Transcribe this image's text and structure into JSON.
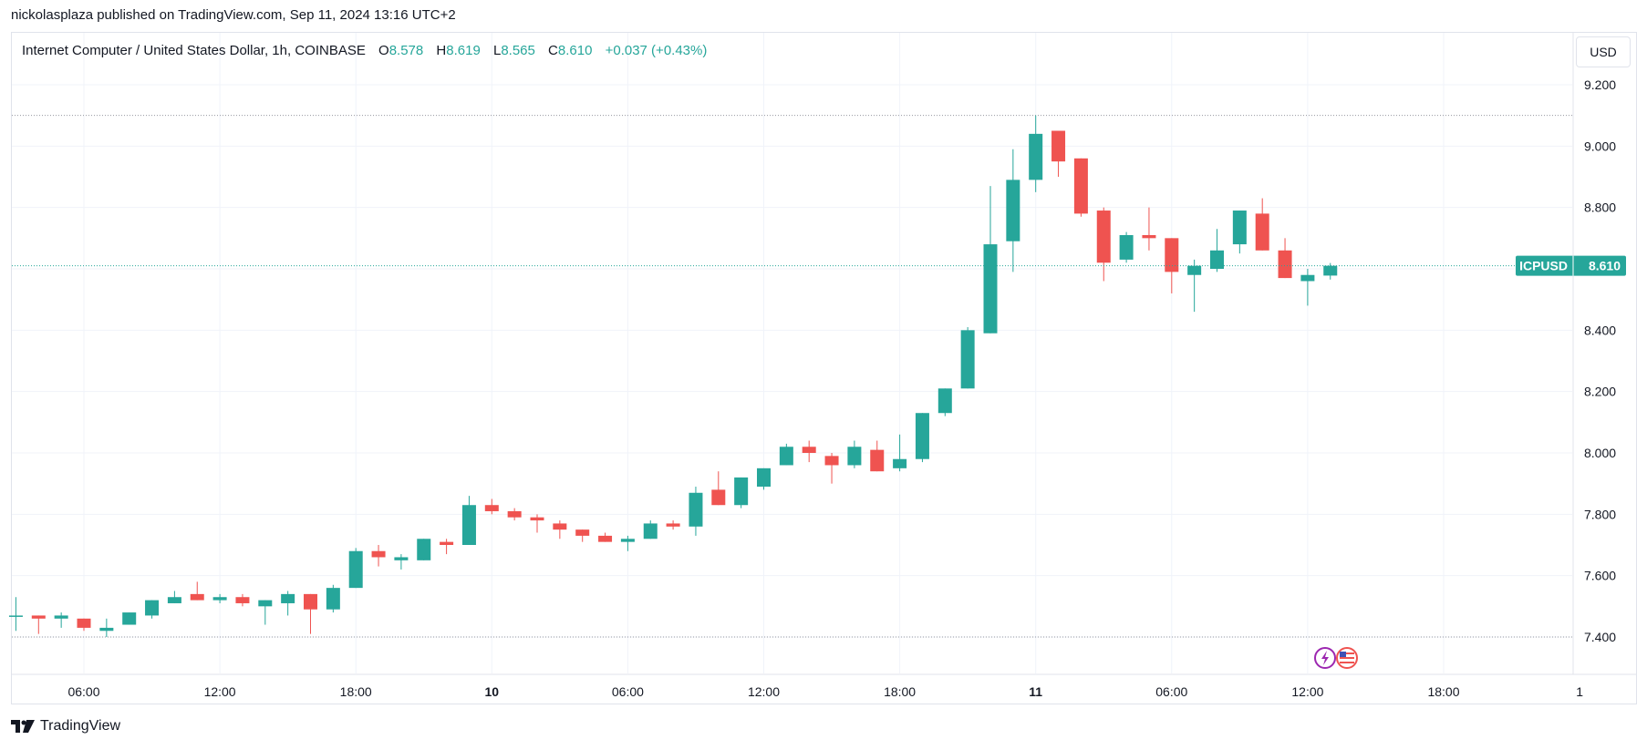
{
  "header": {
    "published": "nickolasplaza published on TradingView.com, Sep 11, 2024 13:16 UTC+2"
  },
  "legend": {
    "symbol": "Internet Computer / United States Dollar, 1h, COINBASE",
    "open_label": "O",
    "open": "8.578",
    "high_label": "H",
    "high": "8.619",
    "low_label": "L",
    "low": "8.565",
    "close_label": "C",
    "close": "8.610",
    "change": "+0.037 (+0.43%)"
  },
  "currency_button": "USD",
  "price_tag": {
    "symbol": "ICPUSD",
    "price": "8.610"
  },
  "footer": {
    "brand": "TradingView"
  },
  "colors": {
    "up": "#26a69a",
    "down": "#ef5350",
    "grid": "#f0f3fa",
    "dotted": "#9598a1"
  },
  "chart_data": {
    "type": "candlestick",
    "timeframe": "1h",
    "x_start": "Sep 9, 03:00",
    "x_end": "Sep 12, 00:00",
    "y_ticks": [
      "9.200",
      "9.000",
      "8.800",
      "8.600",
      "8.400",
      "8.200",
      "8.000",
      "7.800",
      "7.600",
      "7.400"
    ],
    "ylim": [
      7.32,
      9.3
    ],
    "x_ticks": [
      {
        "label": "06:00",
        "time": "Sep 9, 06:00",
        "bold": false
      },
      {
        "label": "12:00",
        "time": "Sep 9, 12:00",
        "bold": false
      },
      {
        "label": "18:00",
        "time": "Sep 9, 18:00",
        "bold": false
      },
      {
        "label": "10",
        "time": "Sep 10, 00:00",
        "bold": true
      },
      {
        "label": "06:00",
        "time": "Sep 10, 06:00",
        "bold": false
      },
      {
        "label": "12:00",
        "time": "Sep 10, 12:00",
        "bold": false
      },
      {
        "label": "18:00",
        "time": "Sep 10, 18:00",
        "bold": false
      },
      {
        "label": "11",
        "time": "Sep 11, 00:00",
        "bold": true
      },
      {
        "label": "06:00",
        "time": "Sep 11, 06:00",
        "bold": false
      },
      {
        "label": "12:00",
        "time": "Sep 11, 12:00",
        "bold": false
      },
      {
        "label": "18:00",
        "time": "Sep 11, 18:00",
        "bold": false
      },
      {
        "label": "1",
        "time": "Sep 12, 00:00",
        "bold": false
      }
    ],
    "horizontal_lines": [
      9.1,
      7.4
    ],
    "candles": [
      {
        "t": "Sep 9, 03:00",
        "o": 7.47,
        "h": 7.53,
        "l": 7.42,
        "c": 7.47
      },
      {
        "t": "Sep 9, 04:00",
        "o": 7.47,
        "h": 7.47,
        "l": 7.41,
        "c": 7.46
      },
      {
        "t": "Sep 9, 05:00",
        "o": 7.46,
        "h": 7.48,
        "l": 7.43,
        "c": 7.47
      },
      {
        "t": "Sep 9, 06:00",
        "o": 7.46,
        "h": 7.46,
        "l": 7.42,
        "c": 7.43
      },
      {
        "t": "Sep 9, 07:00",
        "o": 7.42,
        "h": 7.46,
        "l": 7.4,
        "c": 7.43
      },
      {
        "t": "Sep 9, 08:00",
        "o": 7.44,
        "h": 7.48,
        "l": 7.44,
        "c": 7.48
      },
      {
        "t": "Sep 9, 09:00",
        "o": 7.47,
        "h": 7.52,
        "l": 7.46,
        "c": 7.52
      },
      {
        "t": "Sep 9, 10:00",
        "o": 7.51,
        "h": 7.55,
        "l": 7.51,
        "c": 7.53
      },
      {
        "t": "Sep 9, 11:00",
        "o": 7.54,
        "h": 7.58,
        "l": 7.52,
        "c": 7.52
      },
      {
        "t": "Sep 9, 12:00",
        "o": 7.52,
        "h": 7.54,
        "l": 7.51,
        "c": 7.53
      },
      {
        "t": "Sep 9, 13:00",
        "o": 7.53,
        "h": 7.54,
        "l": 7.5,
        "c": 7.51
      },
      {
        "t": "Sep 9, 14:00",
        "o": 7.5,
        "h": 7.52,
        "l": 7.44,
        "c": 7.52
      },
      {
        "t": "Sep 9, 15:00",
        "o": 7.51,
        "h": 7.55,
        "l": 7.47,
        "c": 7.54
      },
      {
        "t": "Sep 9, 16:00",
        "o": 7.54,
        "h": 7.54,
        "l": 7.41,
        "c": 7.49
      },
      {
        "t": "Sep 9, 17:00",
        "o": 7.49,
        "h": 7.57,
        "l": 7.48,
        "c": 7.56
      },
      {
        "t": "Sep 9, 18:00",
        "o": 7.56,
        "h": 7.69,
        "l": 7.56,
        "c": 7.68
      },
      {
        "t": "Sep 9, 19:00",
        "o": 7.68,
        "h": 7.7,
        "l": 7.63,
        "c": 7.66
      },
      {
        "t": "Sep 9, 20:00",
        "o": 7.65,
        "h": 7.67,
        "l": 7.62,
        "c": 7.66
      },
      {
        "t": "Sep 9, 21:00",
        "o": 7.65,
        "h": 7.72,
        "l": 7.65,
        "c": 7.72
      },
      {
        "t": "Sep 9, 22:00",
        "o": 7.71,
        "h": 7.72,
        "l": 7.67,
        "c": 7.7
      },
      {
        "t": "Sep 9, 23:00",
        "o": 7.7,
        "h": 7.86,
        "l": 7.7,
        "c": 7.83
      },
      {
        "t": "Sep 10, 00:00",
        "o": 7.83,
        "h": 7.85,
        "l": 7.8,
        "c": 7.81
      },
      {
        "t": "Sep 10, 01:00",
        "o": 7.81,
        "h": 7.82,
        "l": 7.78,
        "c": 7.79
      },
      {
        "t": "Sep 10, 02:00",
        "o": 7.79,
        "h": 7.8,
        "l": 7.74,
        "c": 7.78
      },
      {
        "t": "Sep 10, 03:00",
        "o": 7.77,
        "h": 7.78,
        "l": 7.72,
        "c": 7.75
      },
      {
        "t": "Sep 10, 04:00",
        "o": 7.75,
        "h": 7.75,
        "l": 7.71,
        "c": 7.73
      },
      {
        "t": "Sep 10, 05:00",
        "o": 7.73,
        "h": 7.74,
        "l": 7.71,
        "c": 7.71
      },
      {
        "t": "Sep 10, 06:00",
        "o": 7.71,
        "h": 7.73,
        "l": 7.68,
        "c": 7.72
      },
      {
        "t": "Sep 10, 07:00",
        "o": 7.72,
        "h": 7.78,
        "l": 7.72,
        "c": 7.77
      },
      {
        "t": "Sep 10, 08:00",
        "o": 7.77,
        "h": 7.78,
        "l": 7.75,
        "c": 7.76
      },
      {
        "t": "Sep 10, 09:00",
        "o": 7.76,
        "h": 7.89,
        "l": 7.73,
        "c": 7.87
      },
      {
        "t": "Sep 10, 10:00",
        "o": 7.88,
        "h": 7.94,
        "l": 7.83,
        "c": 7.83
      },
      {
        "t": "Sep 10, 11:00",
        "o": 7.83,
        "h": 7.92,
        "l": 7.82,
        "c": 7.92
      },
      {
        "t": "Sep 10, 12:00",
        "o": 7.89,
        "h": 7.95,
        "l": 7.88,
        "c": 7.95
      },
      {
        "t": "Sep 10, 13:00",
        "o": 7.96,
        "h": 8.03,
        "l": 7.96,
        "c": 8.02
      },
      {
        "t": "Sep 10, 14:00",
        "o": 8.02,
        "h": 8.04,
        "l": 7.97,
        "c": 8.0
      },
      {
        "t": "Sep 10, 15:00",
        "o": 7.99,
        "h": 8.0,
        "l": 7.9,
        "c": 7.96
      },
      {
        "t": "Sep 10, 16:00",
        "o": 7.96,
        "h": 8.04,
        "l": 7.95,
        "c": 8.02
      },
      {
        "t": "Sep 10, 17:00",
        "o": 8.01,
        "h": 8.04,
        "l": 7.94,
        "c": 7.94
      },
      {
        "t": "Sep 10, 18:00",
        "o": 7.95,
        "h": 8.06,
        "l": 7.94,
        "c": 7.98
      },
      {
        "t": "Sep 10, 19:00",
        "o": 7.98,
        "h": 8.13,
        "l": 7.97,
        "c": 8.13
      },
      {
        "t": "Sep 10, 20:00",
        "o": 8.13,
        "h": 8.21,
        "l": 8.12,
        "c": 8.21
      },
      {
        "t": "Sep 10, 21:00",
        "o": 8.21,
        "h": 8.41,
        "l": 8.21,
        "c": 8.4
      },
      {
        "t": "Sep 10, 22:00",
        "o": 8.39,
        "h": 8.87,
        "l": 8.39,
        "c": 8.68
      },
      {
        "t": "Sep 10, 23:00",
        "o": 8.69,
        "h": 8.99,
        "l": 8.59,
        "c": 8.89
      },
      {
        "t": "Sep 11, 00:00",
        "o": 8.89,
        "h": 9.1,
        "l": 8.85,
        "c": 9.04
      },
      {
        "t": "Sep 11, 01:00",
        "o": 9.05,
        "h": 9.05,
        "l": 8.9,
        "c": 8.95
      },
      {
        "t": "Sep 11, 02:00",
        "o": 8.96,
        "h": 8.96,
        "l": 8.77,
        "c": 8.78
      },
      {
        "t": "Sep 11, 03:00",
        "o": 8.79,
        "h": 8.8,
        "l": 8.56,
        "c": 8.62
      },
      {
        "t": "Sep 11, 04:00",
        "o": 8.63,
        "h": 8.72,
        "l": 8.62,
        "c": 8.71
      },
      {
        "t": "Sep 11, 05:00",
        "o": 8.71,
        "h": 8.8,
        "l": 8.66,
        "c": 8.7
      },
      {
        "t": "Sep 11, 06:00",
        "o": 8.7,
        "h": 8.7,
        "l": 8.52,
        "c": 8.59
      },
      {
        "t": "Sep 11, 07:00",
        "o": 8.58,
        "h": 8.63,
        "l": 8.46,
        "c": 8.61
      },
      {
        "t": "Sep 11, 08:00",
        "o": 8.6,
        "h": 8.73,
        "l": 8.59,
        "c": 8.66
      },
      {
        "t": "Sep 11, 09:00",
        "o": 8.68,
        "h": 8.79,
        "l": 8.65,
        "c": 8.79
      },
      {
        "t": "Sep 11, 10:00",
        "o": 8.78,
        "h": 8.83,
        "l": 8.66,
        "c": 8.66
      },
      {
        "t": "Sep 11, 11:00",
        "o": 8.66,
        "h": 8.7,
        "l": 8.57,
        "c": 8.57
      },
      {
        "t": "Sep 11, 12:00",
        "o": 8.56,
        "h": 8.6,
        "l": 8.48,
        "c": 8.58
      },
      {
        "t": "Sep 11, 13:00",
        "o": 8.578,
        "h": 8.619,
        "l": 8.565,
        "c": 8.61
      }
    ]
  }
}
